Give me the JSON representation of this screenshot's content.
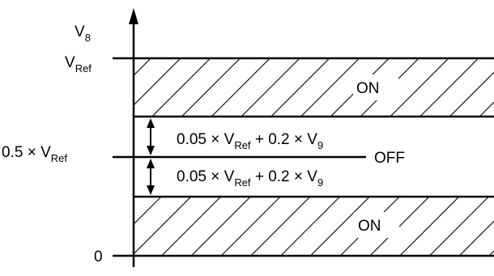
{
  "axis": {
    "symbol": "V",
    "subscript": "8"
  },
  "levels": {
    "ref": {
      "symbol": "V",
      "subscript": "Ref"
    },
    "half": {
      "prefix": "0.5 × V",
      "subscript": "Ref"
    },
    "zero": "0"
  },
  "regions": {
    "upper": "ON",
    "middle": "OFF",
    "lower": "ON"
  },
  "hysteresis": {
    "upper": {
      "part1": "0.05 × V",
      "sub1": "Ref",
      "part2": " + 0.2 × V",
      "sub2": "9"
    },
    "lower": {
      "part1": "0.05 × V",
      "sub1": "Ref",
      "part2": " + 0.2 × V",
      "sub2": "9"
    }
  },
  "colors": {
    "ink": "#000000",
    "background": "#ffffff"
  }
}
